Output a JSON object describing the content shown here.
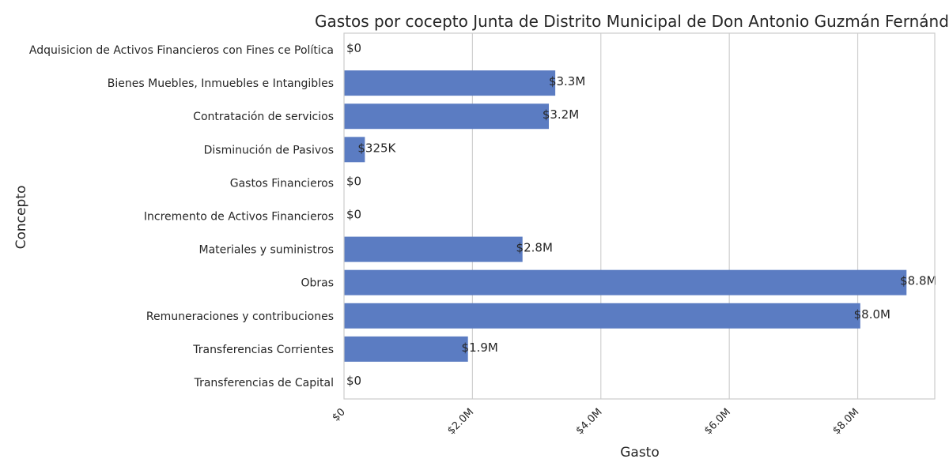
{
  "chart_data": {
    "type": "bar",
    "orientation": "horizontal",
    "title": "Gastos por cocepto Junta de Distrito Municipal de Don Antonio Guzmán Fernández",
    "xlabel": "Gasto",
    "ylabel": "Concepto",
    "categories": [
      "Adquisicion de Activos Financieros con Fines ce Política",
      "Bienes Muebles, Inmuebles e Intangibles",
      "Contratación de servicios",
      "Disminución de Pasivos",
      "Gastos Financieros",
      "Incremento de Activos Financieros",
      "Materiales y suministros",
      "Obras",
      "Remuneraciones y contribuciones",
      "Transferencias Corrientes",
      "Transferencias de Capital"
    ],
    "values": [
      0,
      3290000,
      3190000,
      325000,
      0,
      0,
      2780000,
      8760000,
      8040000,
      1930000,
      0
    ],
    "data_labels": [
      "$0",
      "$3.3M",
      "$3.2M",
      "$325K",
      "$0",
      "$0",
      "$2.8M",
      "$8.8M",
      "$8.0M",
      "$1.9M",
      "$0"
    ],
    "x_ticks": [
      0,
      2000000,
      4000000,
      6000000,
      8000000
    ],
    "x_tick_labels": [
      "$0",
      "$2.0M",
      "$4.0M",
      "$6.0M",
      "$8.0M"
    ],
    "xlim": [
      0,
      9200000
    ],
    "grid": true,
    "bar_color": "#5b7cc2"
  }
}
